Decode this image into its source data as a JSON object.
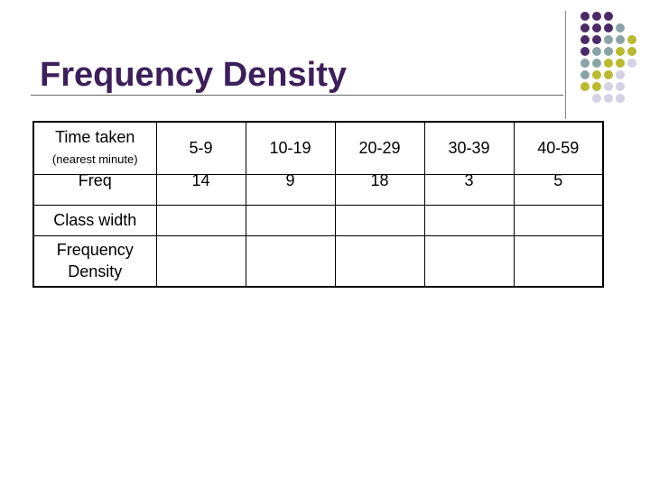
{
  "slide": {
    "title": "Frequency Density"
  },
  "table": {
    "header_label": "Time taken",
    "header_sublabel": "(nearest minute)",
    "classes": [
      "5-9",
      "10-19",
      "20-29",
      "30-39",
      "40-59"
    ],
    "freq_label": "Freq",
    "frequencies": [
      "14",
      "9",
      "18",
      "3",
      "5"
    ],
    "class_width_label": "Class width",
    "frequency_density_label": "Frequency Density"
  },
  "colors": {
    "title": "#3d1f5c",
    "dot_purple": "#4b2a66",
    "dot_teal": "#8aa3a6",
    "dot_olive": "#b9ba2e",
    "dot_lavender": "#d4d2e4"
  }
}
